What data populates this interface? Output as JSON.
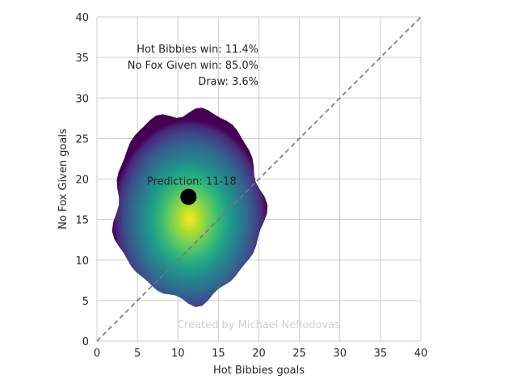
{
  "chart_data": {
    "type": "heatmap",
    "xlabel": "Hot Bibbies goals",
    "ylabel": "No Fox Given goals",
    "xlim": [
      0,
      40
    ],
    "ylim": [
      0,
      40
    ],
    "xticks": [
      0,
      5,
      10,
      15,
      20,
      25,
      30,
      35,
      40
    ],
    "yticks": [
      0,
      5,
      10,
      15,
      20,
      25,
      30,
      35,
      40
    ],
    "grid": true,
    "colormap": "viridis",
    "density_center": [
      11.3,
      16.8
    ],
    "prediction_point": {
      "x": 11.3,
      "y": 17.8
    },
    "prediction_label": "Prediction: 11-18",
    "diagonal": {
      "from": [
        0,
        0
      ],
      "to": [
        40,
        40
      ],
      "style": "dashed"
    },
    "annotations": {
      "home_win": "Hot Bibbies win: 11.4%",
      "away_win": "No Fox Given win: 85.0%",
      "draw": "Draw: 3.6%"
    },
    "credit": "Created by Michael Nefiodovas"
  },
  "colors": {
    "grid": "#cccccc",
    "diagonal": "#777777",
    "point": "#000000"
  }
}
